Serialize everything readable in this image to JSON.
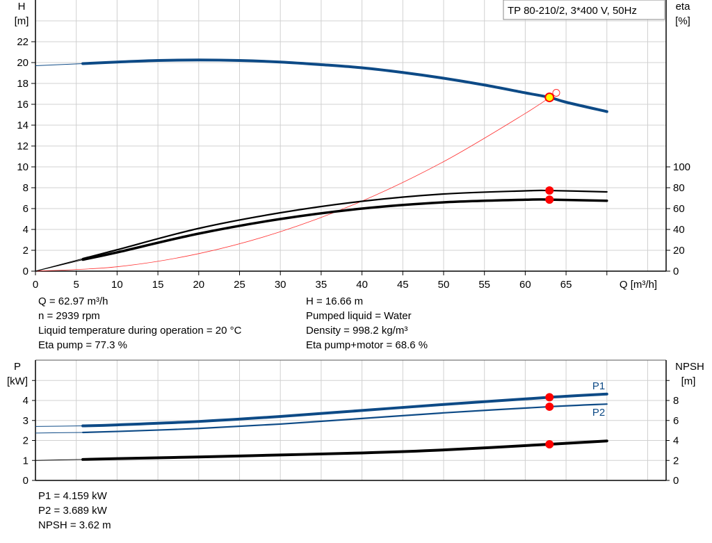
{
  "colors": {
    "head": "#0d4a86",
    "eta": "#000000",
    "system": "#ff3030",
    "duty_point": "#ff0000",
    "duty_fill": "#ffff00",
    "grid": "#d0d0d0"
  },
  "chart_data": [
    {
      "type": "line",
      "title": "TP 80-210/2, 3*400 V, 50Hz",
      "xlabel": "Q [m³/h]",
      "ylabel_top": "H",
      "ylabel_unit": "[m]",
      "y2label_top": "eta",
      "y2label_unit": "[%]",
      "xlim": [
        0,
        77
      ],
      "ylim": [
        0,
        25
      ],
      "y2lim": [
        0,
        166.7
      ],
      "xticks": [
        0,
        5,
        10,
        15,
        20,
        25,
        30,
        35,
        40,
        45,
        50,
        55,
        60,
        65
      ],
      "yticks": [
        0,
        2,
        4,
        6,
        8,
        10,
        12,
        14,
        16,
        18,
        20,
        22
      ],
      "y2ticks": [
        0,
        20,
        40,
        60,
        80,
        100
      ],
      "grid": true,
      "series": [
        {
          "id": "head",
          "axis": "H",
          "x": [
            0,
            5.8,
            10,
            15,
            20,
            25,
            30,
            35,
            40,
            45,
            50,
            55,
            60,
            63,
            65,
            70
          ],
          "y": [
            19.7,
            19.9,
            20.05,
            20.2,
            20.25,
            20.2,
            20.05,
            19.8,
            19.5,
            19.05,
            18.5,
            17.85,
            17.1,
            16.66,
            16.2,
            15.3
          ]
        },
        {
          "id": "eta-pump",
          "axis": "eta",
          "x": [
            0,
            5.8,
            10,
            20,
            30,
            40,
            50,
            60,
            63,
            70
          ],
          "y": [
            0,
            12,
            20.5,
            41,
            56,
            67,
            74,
            77,
            77.3,
            76
          ]
        },
        {
          "id": "eta-pump-motor",
          "axis": "eta",
          "x": [
            0,
            5.8,
            10,
            20,
            30,
            40,
            50,
            60,
            63,
            70
          ],
          "y": [
            0,
            11,
            18,
            36,
            50,
            60,
            66,
            68.5,
            68.6,
            67.5
          ]
        },
        {
          "id": "system-curve",
          "axis": "H",
          "x": [
            0,
            10,
            20,
            30,
            40,
            50,
            60,
            63.8
          ],
          "y": [
            0,
            0.42,
            1.68,
            3.78,
            6.72,
            10.5,
            15.12,
            17.1
          ]
        }
      ],
      "duty_point": {
        "Q": 62.97,
        "H": 16.66,
        "eta_pump": 77.3,
        "eta_pump_motor": 68.6
      }
    },
    {
      "type": "line",
      "ylabel_top": "P",
      "ylabel_unit": "[kW]",
      "y2label_top": "NPSH",
      "y2label_unit": "[m]",
      "xlim": [
        0,
        77
      ],
      "ylim": [
        0,
        6
      ],
      "y2lim": [
        0,
        12
      ],
      "yticks": [
        0,
        1,
        2,
        3,
        4
      ],
      "y2ticks": [
        0,
        2,
        4,
        6,
        8
      ],
      "grid": true,
      "series": [
        {
          "name": "P1",
          "axis": "P",
          "x": [
            0,
            5.8,
            10,
            20,
            30,
            40,
            50,
            63,
            70
          ],
          "y": [
            2.7,
            2.73,
            2.78,
            2.95,
            3.2,
            3.5,
            3.8,
            4.159,
            4.32
          ]
        },
        {
          "name": "P2",
          "axis": "P",
          "x": [
            0,
            5.8,
            10,
            20,
            30,
            40,
            50,
            63,
            70
          ],
          "y": [
            2.37,
            2.4,
            2.45,
            2.6,
            2.82,
            3.1,
            3.38,
            3.689,
            3.82
          ]
        },
        {
          "id": "npsh",
          "axis": "NPSH",
          "x": [
            0,
            5.8,
            10,
            20,
            30,
            40,
            50,
            63,
            70
          ],
          "y": [
            2.0,
            2.1,
            2.18,
            2.35,
            2.55,
            2.75,
            3.05,
            3.62,
            3.95
          ]
        }
      ],
      "duty_point": {
        "Q": 62.97,
        "P1": 4.159,
        "P2": 3.689,
        "NPSH": 3.62
      }
    }
  ],
  "info": {
    "q": "Q = 62.97 m³/h",
    "n": "n = 2939 rpm",
    "temp": "Liquid temperature during operation = 20 °C",
    "eta_pump": "Eta pump = 77.3 %",
    "h": "H = 16.66 m",
    "liquid": "Pumped liquid = Water",
    "density": "Density = 998.2 kg/m³",
    "eta_pm": "Eta pump+motor = 68.6 %",
    "p1": "P1 = 4.159 kW",
    "p2": "P2 = 3.689 kW",
    "npsh": "NPSH = 3.62 m"
  }
}
